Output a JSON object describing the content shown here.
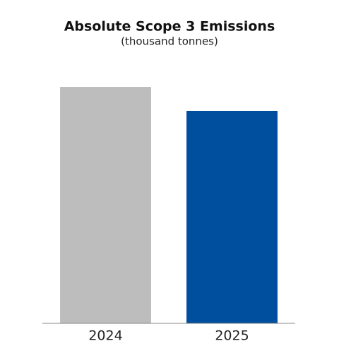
{
  "chart_data": {
    "type": "bar",
    "title": "Absolute Scope 3 Emissions",
    "subtitle": "(thousand tonnes)",
    "categories": [
      "2024",
      "2025"
    ],
    "values": [
      335,
      301
    ],
    "colors": [
      "#bdbdbe",
      "#004f9f"
    ]
  }
}
